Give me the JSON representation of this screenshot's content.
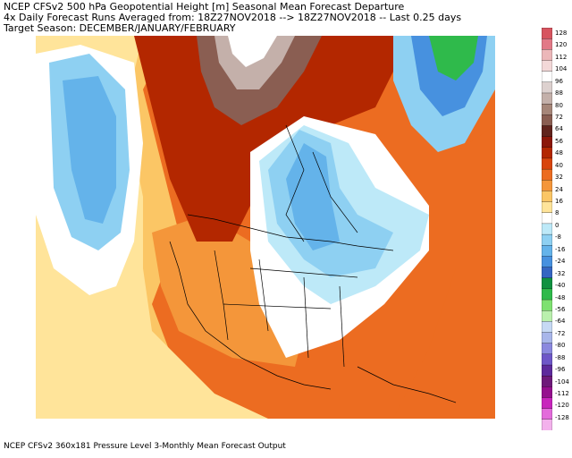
{
  "header": {
    "line1": "NCEP CFSv2 500 hPa Geopotential Height [m] Seasonal Mean Forecast Departure",
    "line2": "4x Daily Forecast Runs Averaged from: 18Z27NOV2018 --> 18Z27NOV2018 -- Last 0.25 days",
    "line3": "Target Season: DECEMBER/JANUARY/FEBRUARY"
  },
  "footer": {
    "text": "NCEP CFSv2 360x181 Pressure Level 3-Monthly Mean Forecast Output"
  },
  "colorbar": {
    "labels": [
      "128",
      "120",
      "112",
      "104",
      "96",
      "88",
      "80",
      "72",
      "64",
      "56",
      "48",
      "40",
      "32",
      "24",
      "16",
      "8",
      "0",
      "-8",
      "-16",
      "-24",
      "-32",
      "-40",
      "-48",
      "-56",
      "-64",
      "-72",
      "-80",
      "-88",
      "-96",
      "-104",
      "-112",
      "-120",
      "-128"
    ],
    "colors": [
      "#d7545f",
      "#e27987",
      "#ecb7b9",
      "#f3d8d8",
      "#ffffff",
      "#ddd1cf",
      "#c4b0aa",
      "#a68679",
      "#8a5e52",
      "#61241d",
      "#8c1709",
      "#b32700",
      "#d8450d",
      "#ec6c21",
      "#f4963a",
      "#fbc665",
      "#ffe49a",
      "#ffffff",
      "#bde9f8",
      "#8ed0f2",
      "#64b3ea",
      "#4791df",
      "#3566c2",
      "#0f9140",
      "#2fba4b",
      "#7ee170",
      "#baf0ad",
      "#c6d9f4",
      "#a8b6ea",
      "#8b89df",
      "#6e57c8",
      "#5d2a9c",
      "#6e1a7a",
      "#95108e",
      "#c825bd",
      "#e36bdb",
      "#f3b1ec"
    ]
  },
  "map_colors": {
    "warm_strong": "#b32700",
    "warm": "#ec6c21",
    "warm_mid": "#f4963a",
    "warm_light": "#fbc665",
    "warm_pale": "#ffe49a",
    "neutral": "#ffffff",
    "cool_pale": "#bde9f8",
    "cool": "#8ed0f2",
    "cool_mid": "#64b3ea",
    "cool_strong": "#4791df",
    "green": "#2fba4b",
    "green_dark": "#0f9140",
    "brown": "#8a5e52",
    "brown_light": "#c4b0aa",
    "border": "#000000"
  }
}
